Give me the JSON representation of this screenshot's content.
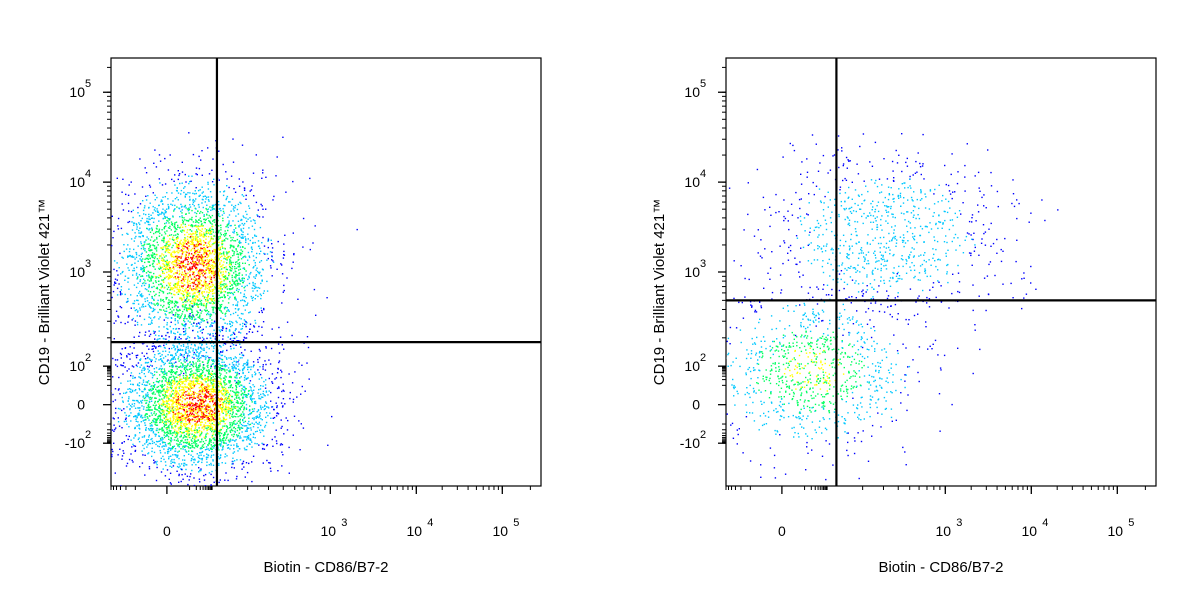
{
  "chart_data": [
    {
      "type": "scatter",
      "title": "",
      "xlabel": "Biotin - CD86/B7-2",
      "ylabel": "CD19 - Brilliant Violet 421™",
      "x_scale": "biexponential",
      "y_scale": "biexponential",
      "x_ticks": [
        {
          "value": 0,
          "base": "0",
          "exp": ""
        },
        {
          "value": 1000,
          "base": "10",
          "exp": "3"
        },
        {
          "value": 10000,
          "base": "10",
          "exp": "4"
        },
        {
          "value": 100000,
          "base": "10",
          "exp": "5"
        }
      ],
      "y_ticks": [
        {
          "value": 100000,
          "base": "10",
          "exp": "5"
        },
        {
          "value": 10000,
          "base": "10",
          "exp": "4"
        },
        {
          "value": 1000,
          "base": "10",
          "exp": "3"
        },
        {
          "value": 100,
          "base": "10",
          "exp": "2"
        },
        {
          "value": 0,
          "base": "0",
          "exp": ""
        },
        {
          "value": -100,
          "base": "-10",
          "exp": "2"
        }
      ],
      "gate": {
        "x": 110,
        "y": 180
      },
      "populations": [
        {
          "x": 15,
          "y": 1200,
          "count": 3200,
          "color_density": "high"
        },
        {
          "x": 20,
          "y": 0,
          "count": 3600,
          "color_density": "high"
        }
      ],
      "colormap": [
        "#0000ff",
        "#00c8ff",
        "#00ff60",
        "#ffff00",
        "#ff0000"
      ],
      "grid": false
    },
    {
      "type": "scatter",
      "title": "",
      "xlabel": "Biotin - CD86/B7-2",
      "ylabel": "CD19 - Brilliant Violet 421™",
      "x_scale": "biexponential",
      "y_scale": "biexponential",
      "x_ticks": [
        {
          "value": 0,
          "base": "0",
          "exp": ""
        },
        {
          "value": 1000,
          "base": "10",
          "exp": "3"
        },
        {
          "value": 10000,
          "base": "10",
          "exp": "4"
        },
        {
          "value": 100000,
          "base": "10",
          "exp": "5"
        }
      ],
      "y_ticks": [
        {
          "value": 100000,
          "base": "10",
          "exp": "5"
        },
        {
          "value": 10000,
          "base": "10",
          "exp": "4"
        },
        {
          "value": 1000,
          "base": "10",
          "exp": "3"
        },
        {
          "value": 100,
          "base": "10",
          "exp": "2"
        },
        {
          "value": 0,
          "base": "0",
          "exp": ""
        },
        {
          "value": -100,
          "base": "-10",
          "exp": "2"
        }
      ],
      "gate": {
        "x": 120,
        "y": 500
      },
      "populations": [
        {
          "x": 300,
          "y": 2500,
          "count": 900,
          "color_density": "low"
        },
        {
          "x": 20,
          "y": 60,
          "count": 1000,
          "color_density": "medium"
        }
      ],
      "colormap": [
        "#0000ff",
        "#00c8ff",
        "#00ff60",
        "#ffff00",
        "#ff0000"
      ],
      "grid": false
    }
  ]
}
